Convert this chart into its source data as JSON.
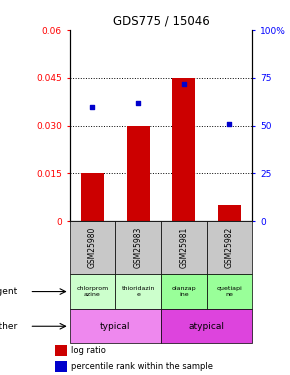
{
  "title": "GDS775 / 15046",
  "samples": [
    "GSM25980",
    "GSM25983",
    "GSM25981",
    "GSM25982"
  ],
  "log_ratio": [
    0.015,
    0.03,
    0.045,
    0.005
  ],
  "percentile_rank": [
    60,
    62,
    72,
    51
  ],
  "ylim_left": [
    0,
    0.06
  ],
  "ylim_right": [
    0,
    100
  ],
  "yticks_left": [
    0,
    0.015,
    0.03,
    0.045,
    0.06
  ],
  "ytick_labels_left": [
    "0",
    "0.015",
    "0.030",
    "0.045",
    "0.06"
  ],
  "yticks_right": [
    0,
    25,
    50,
    75,
    100
  ],
  "ytick_labels_right": [
    "0",
    "25",
    "50",
    "75",
    "100%"
  ],
  "bar_color": "#cc0000",
  "dot_color": "#0000cc",
  "agent_labels_top": [
    "chlorprom",
    "thioridazin",
    "olanzap",
    "quetiapi"
  ],
  "agent_labels_bot": [
    "azine",
    "e",
    "ine",
    "ne"
  ],
  "agent_colors": [
    "#ccffcc",
    "#ccffcc",
    "#99ff99",
    "#99ff99"
  ],
  "other_color_typical": "#ee88ee",
  "other_color_atypical": "#dd44dd",
  "legend_bar_label": "log ratio",
  "legend_dot_label": "percentile rank within the sample",
  "background_color": "#ffffff"
}
